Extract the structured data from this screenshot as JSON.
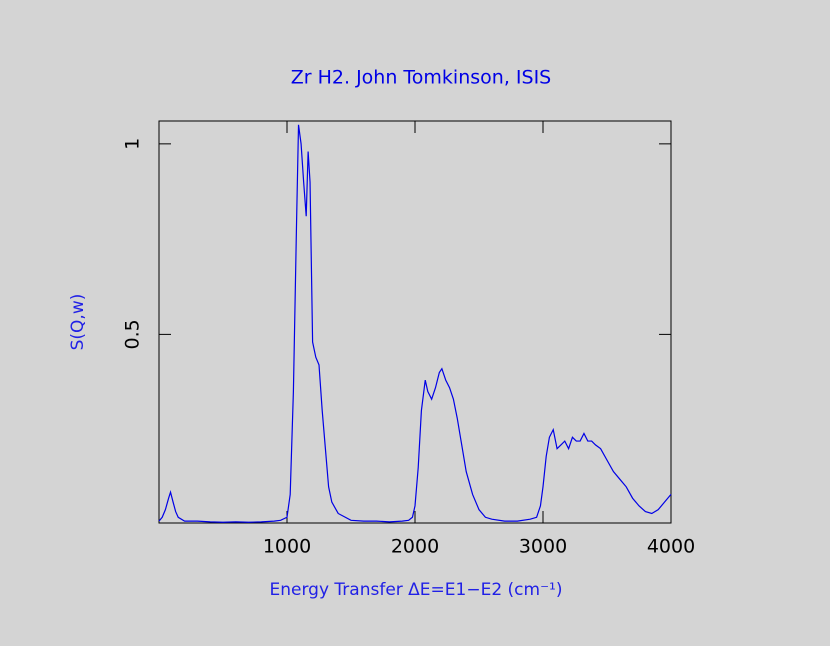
{
  "chart_data": {
    "type": "line",
    "title": "Zr H2. John Tomkinson, ISIS",
    "xlabel": "Energy Transfer ΔE=E1−E2 (cm⁻¹)",
    "ylabel": "S(Q,w)",
    "color": "#0000e6",
    "x": [
      0,
      25,
      50,
      75,
      90,
      110,
      130,
      150,
      200,
      300,
      400,
      500,
      600,
      700,
      800,
      900,
      950,
      1000,
      1025,
      1050,
      1075,
      1090,
      1110,
      1130,
      1150,
      1165,
      1180,
      1200,
      1225,
      1250,
      1275,
      1300,
      1325,
      1350,
      1400,
      1500,
      1600,
      1700,
      1800,
      1900,
      1950,
      1980,
      2000,
      2025,
      2050,
      2080,
      2100,
      2130,
      2160,
      2190,
      2210,
      2240,
      2270,
      2300,
      2330,
      2360,
      2400,
      2450,
      2500,
      2550,
      2600,
      2700,
      2800,
      2900,
      2950,
      2980,
      3000,
      3025,
      3050,
      3080,
      3110,
      3140,
      3170,
      3200,
      3230,
      3260,
      3290,
      3320,
      3350,
      3380,
      3410,
      3450,
      3500,
      3550,
      3600,
      3650,
      3700,
      3750,
      3800,
      3850,
      3900,
      3950,
      4000
    ],
    "values": [
      0.01,
      0.02,
      0.04,
      0.07,
      0.086,
      0.06,
      0.035,
      0.02,
      0.01,
      0.01,
      0.008,
      0.007,
      0.008,
      0.007,
      0.008,
      0.01,
      0.012,
      0.02,
      0.08,
      0.35,
      0.8,
      1.05,
      1.0,
      0.9,
      0.81,
      0.98,
      0.9,
      0.48,
      0.44,
      0.42,
      0.3,
      0.2,
      0.1,
      0.06,
      0.03,
      0.012,
      0.01,
      0.01,
      0.008,
      0.01,
      0.012,
      0.02,
      0.05,
      0.15,
      0.3,
      0.38,
      0.35,
      0.33,
      0.36,
      0.4,
      0.41,
      0.38,
      0.36,
      0.33,
      0.28,
      0.22,
      0.14,
      0.08,
      0.04,
      0.02,
      0.015,
      0.01,
      0.01,
      0.015,
      0.02,
      0.05,
      0.1,
      0.18,
      0.23,
      0.25,
      0.2,
      0.21,
      0.22,
      0.2,
      0.23,
      0.22,
      0.22,
      0.24,
      0.22,
      0.22,
      0.21,
      0.2,
      0.17,
      0.14,
      0.12,
      0.1,
      0.07,
      0.05,
      0.035,
      0.03,
      0.04,
      0.06,
      0.08
    ],
    "xlim": [
      0,
      4000
    ],
    "ylim": [
      0.005,
      1.06
    ],
    "xticks": [
      1000,
      2000,
      3000,
      4000
    ],
    "yticks": [
      0.5,
      1
    ]
  }
}
